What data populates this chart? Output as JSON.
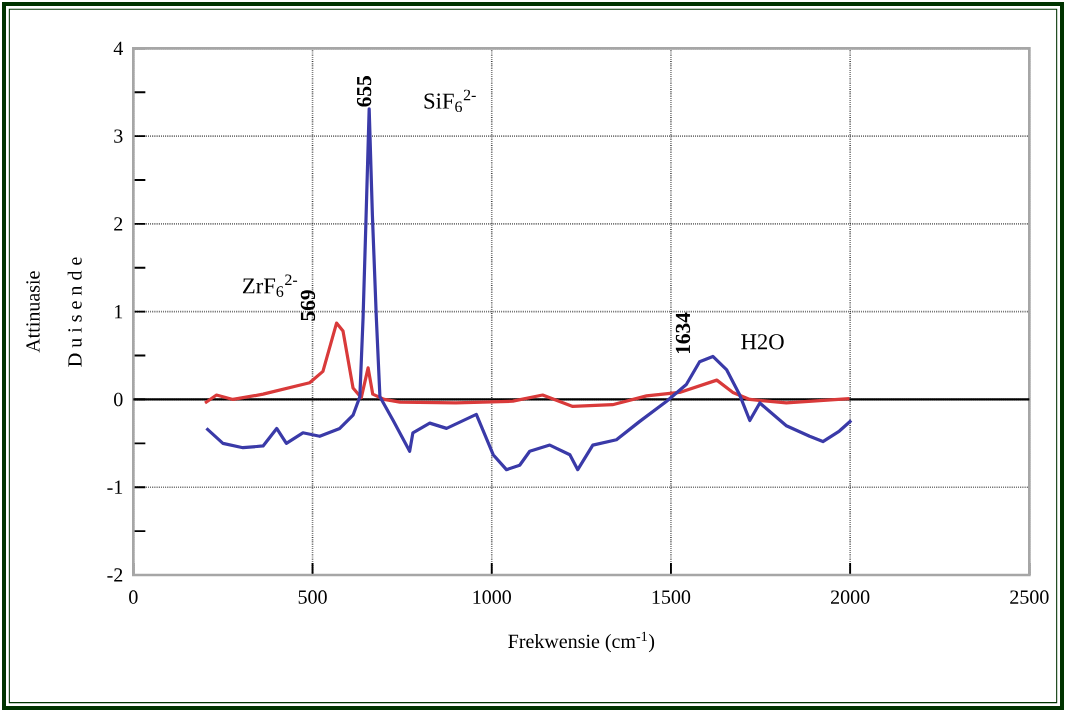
{
  "chart_data": {
    "type": "line",
    "xlabel": "Frekwensie (cm$^{-1}$)",
    "ylabel": "Attinuasie",
    "xlim": [
      0,
      2500
    ],
    "ylim": [
      -2,
      4
    ],
    "xticks": [
      0,
      500,
      1000,
      1500,
      2000,
      2500
    ],
    "yticks": [
      -2,
      -1,
      0,
      1,
      2,
      3,
      4
    ],
    "grid": true,
    "line_style": "solid",
    "ref_lines": [
      {
        "axis": "y",
        "value": 0,
        "color": "#000000"
      }
    ],
    "series": [
      {
        "color": "#d93a3a",
        "x": [
          200,
          232,
          278,
          362,
          492,
          529,
          567,
          585,
          613,
          636,
          655,
          668,
          700,
          744,
          900,
          1059,
          1142,
          1226,
          1337,
          1432,
          1524,
          1628,
          1673,
          1720,
          1822,
          1998
        ],
        "values": [
          -0.04,
          0.05,
          0,
          0.06,
          0.19,
          0.32,
          0.87,
          0.78,
          0.13,
          0.02,
          0.36,
          0.06,
          0,
          -0.03,
          -0.04,
          -0.02,
          0.05,
          -0.08,
          -0.06,
          0.04,
          0.08,
          0.22,
          0.08,
          0,
          -0.04,
          0.01
        ]
      },
      {
        "color": "#3a3aa8",
        "x": [
          204,
          250,
          306,
          362,
          400,
          427,
          473,
          520,
          576,
          613,
          632,
          641,
          649,
          658,
          667,
          678,
          688,
          725,
          771,
          780,
          827,
          874,
          957,
          1004,
          1041,
          1078,
          1106,
          1162,
          1218,
          1240,
          1282,
          1348,
          1413,
          1488,
          1543,
          1580,
          1617,
          1655,
          1692,
          1720,
          1748,
          1822,
          1887,
          1924,
          1970,
          2003
        ],
        "values": [
          -0.33,
          -0.5,
          -0.55,
          -0.53,
          -0.33,
          -0.5,
          -0.38,
          -0.42,
          -0.33,
          -0.18,
          0.03,
          0.93,
          2.03,
          3.31,
          2.1,
          0.93,
          0.03,
          -0.24,
          -0.59,
          -0.38,
          -0.27,
          -0.33,
          -0.17,
          -0.63,
          -0.8,
          -0.75,
          -0.59,
          -0.52,
          -0.63,
          -0.8,
          -0.52,
          -0.46,
          -0.25,
          -0.02,
          0.17,
          0.43,
          0.49,
          0.34,
          0.05,
          -0.24,
          -0.04,
          -0.3,
          -0.42,
          -0.48,
          -0.36,
          -0.24
        ]
      }
    ],
    "annotations": [
      {
        "text": "**569**",
        "x": 569,
        "y": 0.87
      },
      {
        "text": "**655**",
        "x": 655,
        "y": 3.31
      },
      {
        "text": "**1634**",
        "x": 1634,
        "y": 0.49
      },
      {
        "text": "ZrF$_{6}$$^{2-}$",
        "x": 569,
        "y": 0.87
      },
      {
        "text": "SiF$_{6}$$^{2-}$",
        "x": 655,
        "y": 3.31
      },
      {
        "text": "H2O",
        "x": 1634,
        "y": 0.49
      },
      "D u i s e n d e"
    ]
  }
}
